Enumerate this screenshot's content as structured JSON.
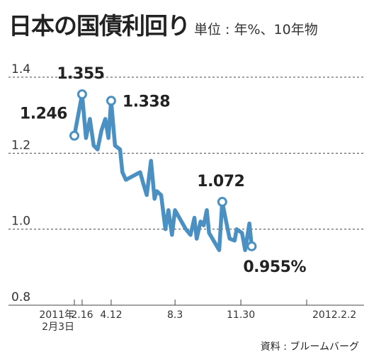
{
  "header": {
    "title": "日本の国債利回り",
    "subtitle": "単位 : 年%、10年物"
  },
  "source": "資料 : ブルームバーグ",
  "chart_data": {
    "type": "line",
    "title": "日本の国債利回り",
    "subtitle": "単位 : 年%、10年物",
    "unit": "年%",
    "xlabel": "",
    "ylabel": "",
    "ylim": [
      0.8,
      1.4
    ],
    "y_ticks": [
      1.4,
      1.2,
      1.0,
      0.8
    ],
    "y_tick_labels": [
      "1.4",
      "1.2",
      "1.0",
      "0.8"
    ],
    "grid": "dotted horizontal",
    "x_tick_labels": [
      {
        "label": "2011年\n2月3日",
        "x": 0
      },
      {
        "label": "2.16",
        "x": 2
      },
      {
        "label": "4.12",
        "x": 9.5
      },
      {
        "label": "8.3",
        "x": 26
      },
      {
        "label": "11.30",
        "x": 43
      },
      {
        "label": "2012.2.2",
        "x": 60
      }
    ],
    "x_range": [
      0,
      60
    ],
    "series": [
      {
        "color": "#4a90c2",
        "points": [
          {
            "x": 0,
            "y": 1.246
          },
          {
            "x": 2,
            "y": 1.355
          },
          {
            "x": 3,
            "y": 1.24
          },
          {
            "x": 4,
            "y": 1.29
          },
          {
            "x": 5,
            "y": 1.22
          },
          {
            "x": 6,
            "y": 1.21
          },
          {
            "x": 7,
            "y": 1.26
          },
          {
            "x": 8,
            "y": 1.29
          },
          {
            "x": 8.8,
            "y": 1.24
          },
          {
            "x": 9.5,
            "y": 1.338
          },
          {
            "x": 10.5,
            "y": 1.22
          },
          {
            "x": 11.8,
            "y": 1.21
          },
          {
            "x": 12.4,
            "y": 1.15
          },
          {
            "x": 13.3,
            "y": 1.13
          },
          {
            "x": 17,
            "y": 1.15
          },
          {
            "x": 17.8,
            "y": 1.12
          },
          {
            "x": 18.7,
            "y": 1.09
          },
          {
            "x": 19.8,
            "y": 1.18
          },
          {
            "x": 20.7,
            "y": 1.08
          },
          {
            "x": 21.3,
            "y": 1.1
          },
          {
            "x": 22.4,
            "y": 1.09
          },
          {
            "x": 23.5,
            "y": 1.0
          },
          {
            "x": 24.3,
            "y": 1.05
          },
          {
            "x": 25.2,
            "y": 0.985
          },
          {
            "x": 26,
            "y": 1.05
          },
          {
            "x": 28.8,
            "y": 1.0
          },
          {
            "x": 30,
            "y": 0.985
          },
          {
            "x": 31,
            "y": 1.03
          },
          {
            "x": 31.6,
            "y": 0.975
          },
          {
            "x": 32.6,
            "y": 1.02
          },
          {
            "x": 33.4,
            "y": 1.01
          },
          {
            "x": 34.2,
            "y": 1.05
          },
          {
            "x": 34.8,
            "y": 0.99
          },
          {
            "x": 37.4,
            "y": 0.945
          },
          {
            "x": 38.2,
            "y": 1.072
          },
          {
            "x": 39.2,
            "y": 1.02
          },
          {
            "x": 40.1,
            "y": 0.975
          },
          {
            "x": 41.4,
            "y": 0.97
          },
          {
            "x": 41.9,
            "y": 1.0
          },
          {
            "x": 43.3,
            "y": 0.99
          },
          {
            "x": 44.1,
            "y": 0.945
          },
          {
            "x": 45.2,
            "y": 1.015
          },
          {
            "x": 45.8,
            "y": 0.955
          }
        ]
      }
    ],
    "annotations": [
      {
        "text": "1.246",
        "x": 0,
        "y": 1.246,
        "position": "upper-left"
      },
      {
        "text": "1.355",
        "x": 2,
        "y": 1.355,
        "position": "above"
      },
      {
        "text": "1.338",
        "x": 9.5,
        "y": 1.338,
        "position": "right"
      },
      {
        "text": "1.072",
        "x": 38.2,
        "y": 1.072,
        "position": "above"
      },
      {
        "text": "0.955%",
        "x": 45.8,
        "y": 0.955,
        "position": "below"
      }
    ]
  }
}
